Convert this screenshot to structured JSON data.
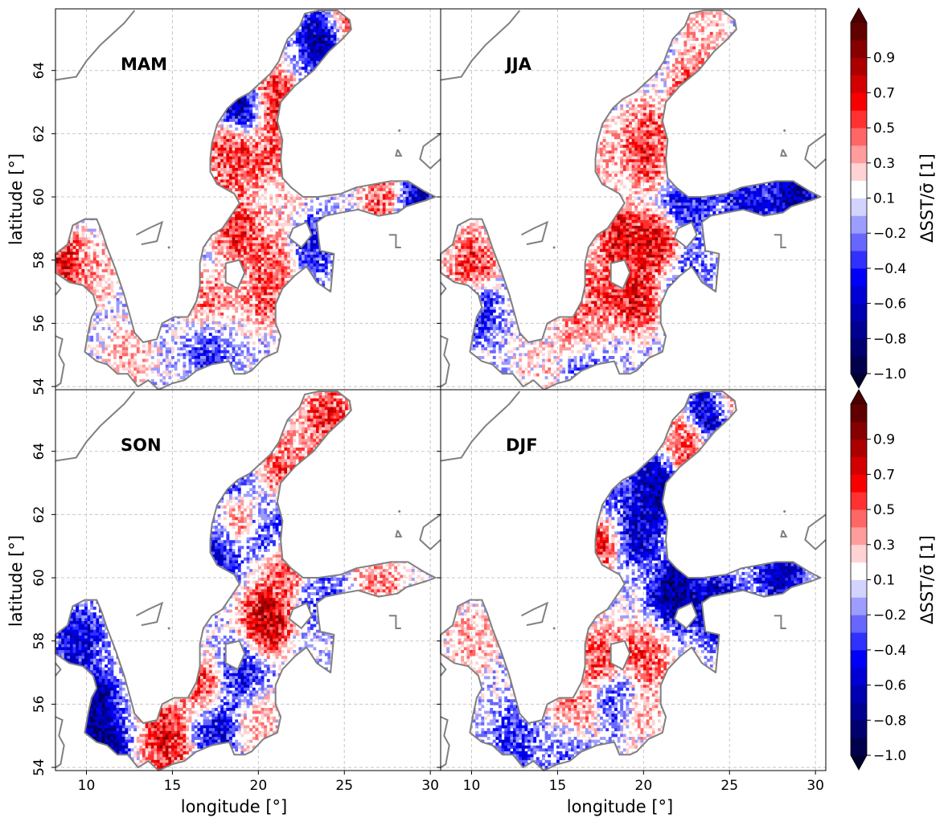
{
  "chart_data": {
    "type": "heatmap",
    "x_range": [
      8.2,
      30.6
    ],
    "y_range": [
      53.9,
      65.95
    ],
    "x_ticks": [
      "10",
      "15",
      "20",
      "25",
      "30"
    ],
    "y_ticks": [
      "54",
      "56",
      "58",
      "60",
      "62",
      "64"
    ],
    "xlabel": "longitude [$^{\\circ}$]",
    "xlabel_display": "longitude [°]",
    "ylabel_display": "latitude [°]",
    "grid": true,
    "panels": [
      {
        "label": "MAM",
        "row": 0,
        "col": 0,
        "pattern": [
          {
            "lon": 23.9,
            "lat": 65.0,
            "v": -0.9
          },
          {
            "lon": 25.1,
            "lat": 65.5,
            "v": 0.6
          },
          {
            "lon": 20.6,
            "lat": 63.0,
            "v": 0.8
          },
          {
            "lon": 19.2,
            "lat": 62.8,
            "v": -0.9
          },
          {
            "lon": 18.6,
            "lat": 61.5,
            "v": 0.7
          },
          {
            "lon": 20.5,
            "lat": 61.4,
            "v": 0.6
          },
          {
            "lon": 18.3,
            "lat": 60.6,
            "v": 0.5
          },
          {
            "lon": 27.5,
            "lat": 60.0,
            "v": 0.6
          },
          {
            "lon": 29.0,
            "lat": 60.0,
            "v": -0.8
          },
          {
            "lon": 18.9,
            "lat": 58.8,
            "v": 0.7
          },
          {
            "lon": 21.0,
            "lat": 58.0,
            "v": 0.5
          },
          {
            "lon": 20.5,
            "lat": 57.0,
            "v": 0.6
          },
          {
            "lon": 17.4,
            "lat": 56.5,
            "v": 0.5
          },
          {
            "lon": 18.0,
            "lat": 55.5,
            "v": 0.3
          },
          {
            "lon": 17.6,
            "lat": 55.3,
            "v": -0.8
          },
          {
            "lon": 10.3,
            "lat": 57.6,
            "v": 0.3
          },
          {
            "lon": 12.5,
            "lat": 55.0,
            "v": 0.3
          },
          {
            "lon": 23.0,
            "lat": 58.5,
            "v": -0.5
          },
          {
            "lon": 21.6,
            "lat": 59.5,
            "v": 0.2
          },
          {
            "lon": 8.7,
            "lat": 57.8,
            "v": 0.8
          }
        ]
      },
      {
        "label": "JJA",
        "row": 0,
        "col": 1,
        "pattern": [
          {
            "lon": 23.5,
            "lat": 65.0,
            "v": 0.3
          },
          {
            "lon": 23.0,
            "lat": 63.4,
            "v": 0.6
          },
          {
            "lon": 20.3,
            "lat": 62.0,
            "v": 0.5
          },
          {
            "lon": 20.1,
            "lat": 61.4,
            "v": 0.7
          },
          {
            "lon": 18.5,
            "lat": 61.2,
            "v": 0.3
          },
          {
            "lon": 20.8,
            "lat": 58.5,
            "v": 0.8
          },
          {
            "lon": 18.8,
            "lat": 58.6,
            "v": 0.8
          },
          {
            "lon": 19.5,
            "lat": 56.8,
            "v": 0.8
          },
          {
            "lon": 17.5,
            "lat": 57.0,
            "v": 0.6
          },
          {
            "lon": 16.5,
            "lat": 55.7,
            "v": 0.5
          },
          {
            "lon": 26.0,
            "lat": 59.8,
            "v": -0.6
          },
          {
            "lon": 28.7,
            "lat": 60.1,
            "v": -0.8
          },
          {
            "lon": 22.6,
            "lat": 59.7,
            "v": -0.5
          },
          {
            "lon": 10.0,
            "lat": 57.8,
            "v": 0.7
          },
          {
            "lon": 10.2,
            "lat": 56.5,
            "v": -0.5
          },
          {
            "lon": 14.0,
            "lat": 54.7,
            "v": 0.2
          },
          {
            "lon": 22.5,
            "lat": 57.4,
            "v": -0.3
          },
          {
            "lon": 16.7,
            "lat": 54.8,
            "v": -0.3
          }
        ]
      },
      {
        "label": "SON",
        "row": 1,
        "col": 0,
        "pattern": [
          {
            "lon": 24.0,
            "lat": 65.0,
            "v": 0.7
          },
          {
            "lon": 22.5,
            "lat": 63.8,
            "v": 0.3
          },
          {
            "lon": 21.6,
            "lat": 63.5,
            "v": 0.6
          },
          {
            "lon": 18.1,
            "lat": 62.8,
            "v": -0.6
          },
          {
            "lon": 18.5,
            "lat": 62.0,
            "v": 0.6
          },
          {
            "lon": 20.5,
            "lat": 61.5,
            "v": -0.3
          },
          {
            "lon": 17.6,
            "lat": 61.0,
            "v": -0.6
          },
          {
            "lon": 20.5,
            "lat": 58.7,
            "v": 0.9
          },
          {
            "lon": 21.5,
            "lat": 60.1,
            "v": 0.6
          },
          {
            "lon": 27.0,
            "lat": 59.9,
            "v": 0.4
          },
          {
            "lon": 23.5,
            "lat": 59.5,
            "v": -0.3
          },
          {
            "lon": 19.0,
            "lat": 56.8,
            "v": -0.5
          },
          {
            "lon": 16.9,
            "lat": 56.3,
            "v": 0.7
          },
          {
            "lon": 17.5,
            "lat": 55.5,
            "v": -0.7
          },
          {
            "lon": 14.6,
            "lat": 54.9,
            "v": 0.8
          },
          {
            "lon": 10.3,
            "lat": 56.0,
            "v": -0.9
          },
          {
            "lon": 9.5,
            "lat": 58.0,
            "v": -0.6
          },
          {
            "lon": 11.0,
            "lat": 54.6,
            "v": -0.9
          },
          {
            "lon": 19.9,
            "lat": 55.6,
            "v": 0.3
          }
        ]
      },
      {
        "label": "DJF",
        "row": 1,
        "col": 1,
        "pattern": [
          {
            "lon": 24.0,
            "lat": 65.2,
            "v": -0.9
          },
          {
            "lon": 25.0,
            "lat": 65.6,
            "v": 0.6
          },
          {
            "lon": 22.5,
            "lat": 64.2,
            "v": 0.6
          },
          {
            "lon": 20.8,
            "lat": 62.8,
            "v": -0.8
          },
          {
            "lon": 17.5,
            "lat": 61.5,
            "v": 0.9
          },
          {
            "lon": 18.0,
            "lat": 62.2,
            "v": -0.5
          },
          {
            "lon": 19.6,
            "lat": 61.5,
            "v": -0.7
          },
          {
            "lon": 21.9,
            "lat": 59.5,
            "v": -0.9
          },
          {
            "lon": 24.3,
            "lat": 59.0,
            "v": -0.8
          },
          {
            "lon": 28.0,
            "lat": 60.2,
            "v": -0.7
          },
          {
            "lon": 20.0,
            "lat": 57.5,
            "v": 0.6
          },
          {
            "lon": 17.6,
            "lat": 57.4,
            "v": 0.6
          },
          {
            "lon": 16.0,
            "lat": 55.6,
            "v": 0.5
          },
          {
            "lon": 19.5,
            "lat": 55.9,
            "v": 0.4
          },
          {
            "lon": 10.0,
            "lat": 58.0,
            "v": 0.3
          },
          {
            "lon": 12.5,
            "lat": 54.8,
            "v": -0.4
          },
          {
            "lon": 18.6,
            "lat": 56.1,
            "v": -0.5
          },
          {
            "lon": 15.8,
            "lat": 54.7,
            "v": -0.3
          }
        ]
      }
    ],
    "colorbar": {
      "label": "ΔSST/σ̄ [1]",
      "levels": [
        -1.0,
        -0.9,
        -0.8,
        -0.7,
        -0.6,
        -0.5,
        -0.4,
        -0.3,
        -0.2,
        -0.1,
        0.1,
        0.2,
        0.3,
        0.4,
        0.5,
        0.6,
        0.7,
        0.8,
        0.9,
        1.0
      ],
      "tick_labels": [
        "−1.0",
        "−0.8",
        "−0.6",
        "−0.4",
        "−0.2",
        "0.1",
        "0.3",
        "0.5",
        "0.7",
        "0.9"
      ],
      "extend": "both",
      "colors": [
        "#00004c",
        "#00006e",
        "#000091",
        "#0000b3",
        "#0000d5",
        "#0000f8",
        "#3131ff",
        "#6767ff",
        "#9d9dff",
        "#d3d3ff",
        "#ffffff",
        "#ffd3d3",
        "#ff9d9d",
        "#ff6767",
        "#ff3131",
        "#f80000",
        "#d20000",
        "#ac0000",
        "#860000",
        "#600000"
      ]
    }
  }
}
